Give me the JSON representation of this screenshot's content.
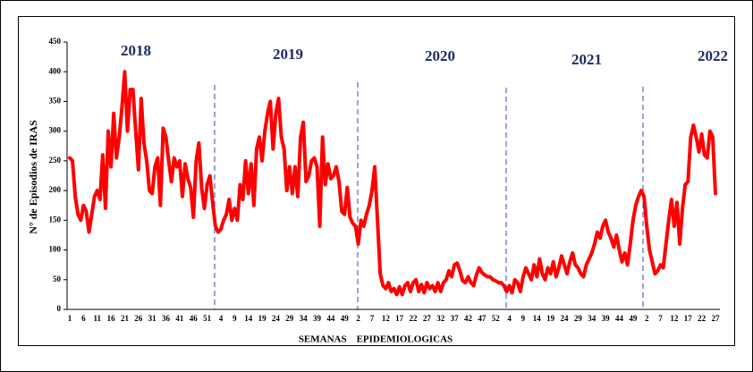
{
  "chart_data": {
    "type": "line",
    "ylabel": "N° de Episodios de IRAS",
    "xlabel": "SEMANAS    EPIDEMIOLOGICAS",
    "annotations": [
      "2018",
      "2019",
      "2020",
      "2021",
      "2022"
    ],
    "categories": [
      "1",
      null,
      null,
      null,
      null,
      "6",
      null,
      null,
      null,
      null,
      "11",
      null,
      null,
      null,
      null,
      "16",
      null,
      null,
      null,
      null,
      "21",
      null,
      null,
      null,
      null,
      "26",
      null,
      null,
      null,
      null,
      "31",
      null,
      null,
      null,
      null,
      "36",
      null,
      null,
      null,
      null,
      "41",
      null,
      null,
      null,
      null,
      "46",
      null,
      null,
      null,
      null,
      "51",
      null,
      null,
      null,
      null,
      "4",
      null,
      null,
      null,
      null,
      "9",
      null,
      null,
      null,
      null,
      "14",
      null,
      null,
      null,
      null,
      "19",
      null,
      null,
      null,
      null,
      "24",
      null,
      null,
      null,
      null,
      "29",
      null,
      null,
      null,
      null,
      "34",
      null,
      null,
      null,
      null,
      "39",
      null,
      null,
      null,
      null,
      "44",
      null,
      null,
      null,
      null,
      "49",
      null,
      null,
      null,
      null,
      "2",
      null,
      null,
      null,
      null,
      "7",
      null,
      null,
      null,
      null,
      "12",
      null,
      null,
      null,
      null,
      "17",
      null,
      null,
      null,
      null,
      "22",
      null,
      null,
      null,
      null,
      "27",
      null,
      null,
      null,
      null,
      "32",
      null,
      null,
      null,
      null,
      "37",
      null,
      null,
      null,
      null,
      "42",
      null,
      null,
      null,
      null,
      "47",
      null,
      null,
      null,
      null,
      "52",
      null,
      null,
      null,
      null,
      "4",
      null,
      null,
      null,
      null,
      "9",
      null,
      null,
      null,
      null,
      "14",
      null,
      null,
      null,
      null,
      "19",
      null,
      null,
      null,
      null,
      "24",
      null,
      null,
      null,
      null,
      "29",
      null,
      null,
      null,
      null,
      "34",
      null,
      null,
      null,
      null,
      "39",
      null,
      null,
      null,
      null,
      "44",
      null,
      null,
      null,
      null,
      "49",
      null,
      null,
      null,
      null,
      "2",
      null,
      null,
      null,
      null,
      "7",
      null,
      null,
      null,
      null,
      "12",
      null,
      null,
      null,
      null,
      "17",
      null,
      null,
      null,
      null,
      "22",
      null,
      null,
      null,
      null,
      "27"
    ],
    "series": [
      {
        "name": "IRAS",
        "color": "#ff0000",
        "values": [
          255,
          250,
          190,
          160,
          150,
          175,
          165,
          130,
          160,
          190,
          200,
          185,
          260,
          170,
          300,
          240,
          330,
          255,
          290,
          340,
          400,
          300,
          370,
          370,
          300,
          235,
          355,
          280,
          250,
          200,
          195,
          240,
          255,
          175,
          305,
          290,
          250,
          215,
          255,
          240,
          250,
          190,
          245,
          220,
          205,
          155,
          250,
          280,
          205,
          170,
          210,
          225,
          180,
          140,
          130,
          135,
          150,
          160,
          185,
          150,
          170,
          150,
          210,
          185,
          250,
          195,
          245,
          175,
          270,
          290,
          250,
          300,
          330,
          350,
          270,
          330,
          355,
          290,
          270,
          200,
          240,
          195,
          240,
          190,
          290,
          315,
          215,
          225,
          250,
          255,
          240,
          140,
          290,
          210,
          245,
          220,
          225,
          240,
          215,
          165,
          160,
          205,
          155,
          145,
          140,
          110,
          150,
          140,
          160,
          175,
          200,
          240,
          150,
          60,
          40,
          35,
          45,
          30,
          35,
          25,
          38,
          25,
          40,
          45,
          30,
          45,
          50,
          30,
          42,
          28,
          45,
          35,
          40,
          30,
          45,
          30,
          45,
          50,
          65,
          55,
          75,
          78,
          65,
          48,
          45,
          55,
          45,
          40,
          58,
          70,
          62,
          58,
          55,
          55,
          50,
          48,
          45,
          45,
          40,
          30,
          40,
          28,
          50,
          45,
          30,
          55,
          70,
          60,
          50,
          75,
          55,
          85,
          60,
          50,
          70,
          60,
          80,
          55,
          70,
          90,
          75,
          60,
          80,
          95,
          75,
          70,
          60,
          55,
          75,
          85,
          95,
          110,
          130,
          120,
          140,
          150,
          130,
          120,
          105,
          125,
          100,
          80,
          95,
          75,
          110,
          150,
          175,
          190,
          200,
          190,
          140,
          100,
          80,
          60,
          65,
          75,
          70,
          110,
          150,
          185,
          140,
          180,
          110,
          170,
          210,
          215,
          290,
          310,
          290,
          265,
          295,
          260,
          255,
          300,
          290,
          195
        ]
      }
    ],
    "ylim": [
      0,
      450
    ],
    "yticks": [
      0,
      50,
      100,
      150,
      200,
      250,
      300,
      350,
      400,
      450
    ]
  }
}
